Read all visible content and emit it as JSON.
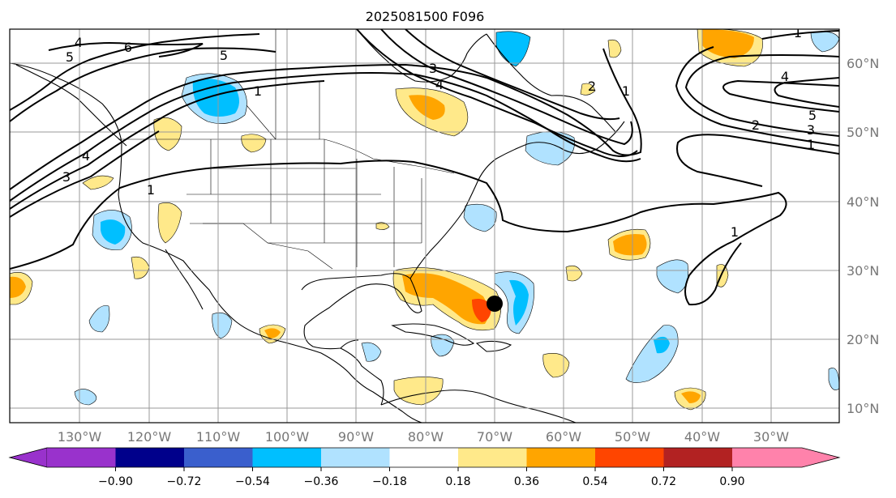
{
  "title": "2025081500 F096",
  "lat_labels": [
    "60°N",
    "50°N",
    "40°N",
    "30°N",
    "20°N",
    "10°N"
  ],
  "lon_labels": [
    "130°W",
    "120°W",
    "110°W",
    "100°W",
    "90°W",
    "80°W",
    "70°W",
    "60°W",
    "50°W",
    "40°W",
    "30°W"
  ],
  "colorbar": {
    "colors": [
      "#9932cc",
      "#00008b",
      "#3a5fcd",
      "#00bfff",
      "#b0e2ff",
      "#ffffff",
      "#ffe98a",
      "#ffa500",
      "#ff4500",
      "#b22222",
      "#ff82ab"
    ],
    "ticks": [
      "−0.90",
      "−0.72",
      "−0.54",
      "−0.36",
      "−0.18",
      "0.18",
      "0.36",
      "0.54",
      "0.72",
      "0.90"
    ]
  },
  "contour_labels": [
    "4",
    "5",
    "6",
    "5",
    "1",
    "4",
    "3",
    "1",
    "3",
    "2",
    "1",
    "4",
    "1",
    "4",
    "2",
    "3",
    "1",
    "5",
    "1"
  ],
  "marker": {
    "lon": -70,
    "lat": 25.2,
    "color": "#000000"
  }
}
